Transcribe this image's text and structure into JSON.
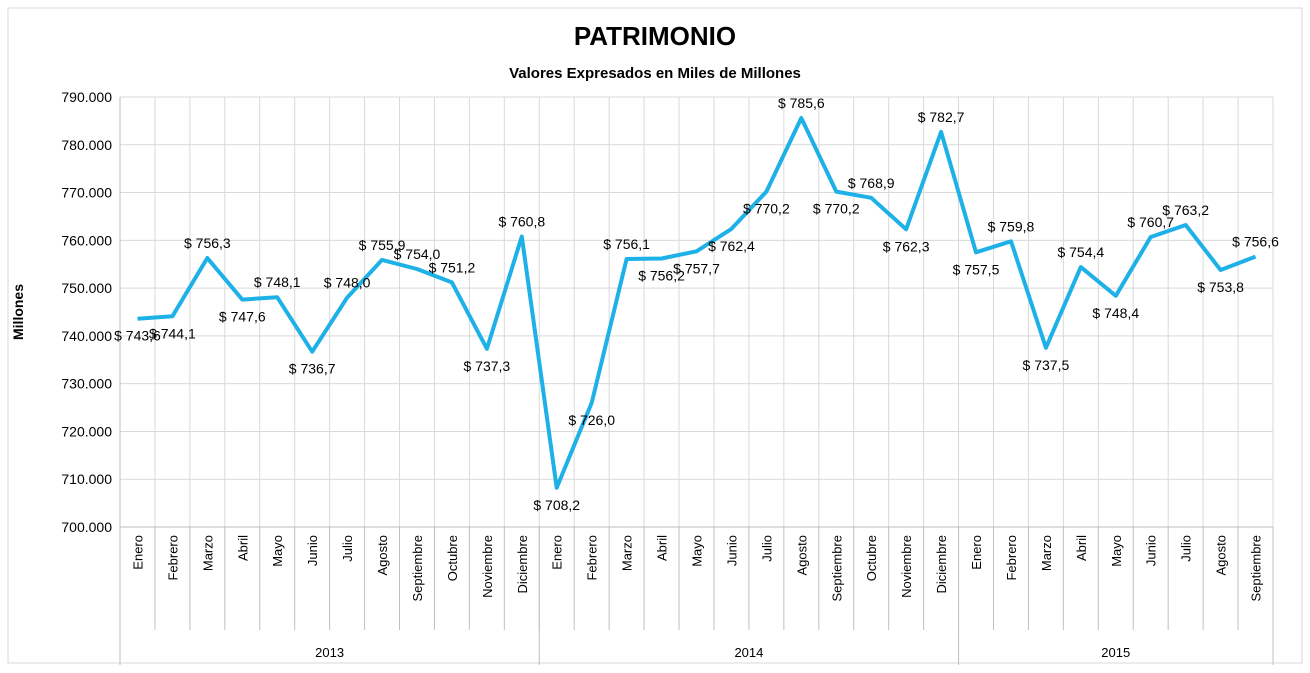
{
  "chart_data": {
    "type": "line",
    "title": "PATRIMONIO",
    "subtitle": "Valores Expresados en Miles de Millones",
    "y_axis_label": "Millones",
    "groups": [
      {
        "name": "2013",
        "categories": [
          "Enero",
          "Febrero",
          "Marzo",
          "Abril",
          "Mayo",
          "Junio",
          "Julio",
          "Agosto",
          "Septiembre",
          "Octubre",
          "Noviembre",
          "Diciembre"
        ]
      },
      {
        "name": "2014",
        "categories": [
          "Enero",
          "Febrero",
          "Marzo",
          "Abril",
          "Mayo",
          "Junio",
          "Julio",
          "Agosto",
          "Septiembre",
          "Octubre",
          "Noviembre",
          "Diciembre"
        ]
      },
      {
        "name": "2015",
        "categories": [
          "Enero",
          "Febrero",
          "Marzo",
          "Abril",
          "Mayo",
          "Junio",
          "Julio",
          "Agosto",
          "Septiembre"
        ]
      }
    ],
    "series": [
      {
        "color": "#1eb1e8",
        "values": [
          743600,
          744100,
          756300,
          747600,
          748100,
          736700,
          748000,
          755900,
          754000,
          751200,
          737300,
          760800,
          708200,
          726000,
          756100,
          756200,
          757700,
          762400,
          770200,
          785600,
          770200,
          768900,
          762300,
          782700,
          757500,
          759800,
          737500,
          754400,
          748400,
          760700,
          763200,
          753800,
          756600
        ],
        "value_labels": [
          "$ 743,6",
          "$ 744,1",
          "$ 756,3",
          "$ 747,6",
          "$ 748,1",
          "$ 736,7",
          "$ 748,0",
          "$ 755,9",
          "$ 754,0",
          "$ 751,2",
          "$ 737,3",
          "$ 760,8",
          "$ 708,2",
          "$ 726,0",
          "$ 756,1",
          "$ 756,2",
          "$ 757,7",
          "$ 762,4",
          "$ 770,2",
          "$ 785,6",
          "$ 770,2",
          "$ 768,9",
          "$ 762,3",
          "$ 782,7",
          "$ 757,5",
          "$ 759,8",
          "$ 737,5",
          "$ 754,4",
          "$ 748,4",
          "$ 760,7",
          "$ 763,2",
          "$ 753,8",
          "$ 756,6"
        ]
      }
    ],
    "ylim": [
      700000,
      790000
    ],
    "yticks": [
      {
        "value": 700000,
        "label": "700.000"
      },
      {
        "value": 710000,
        "label": "710.000"
      },
      {
        "value": 720000,
        "label": "720.000"
      },
      {
        "value": 730000,
        "label": "730.000"
      },
      {
        "value": 740000,
        "label": "740.000"
      },
      {
        "value": 750000,
        "label": "750.000"
      },
      {
        "value": 760000,
        "label": "760.000"
      },
      {
        "value": 770000,
        "label": "770.000"
      },
      {
        "value": 780000,
        "label": "780.000"
      },
      {
        "value": 790000,
        "label": "790.000"
      }
    ],
    "grid": true
  }
}
